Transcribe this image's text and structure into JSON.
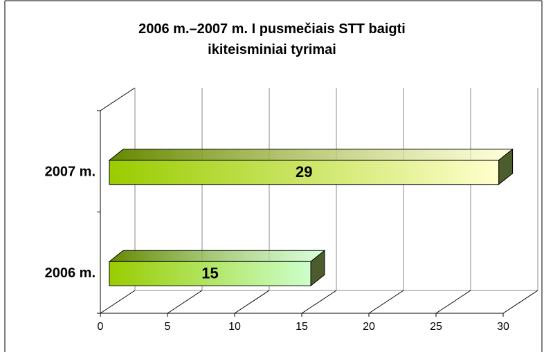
{
  "chart_data": {
    "type": "bar",
    "orientation": "horizontal",
    "title": "2006 m.–2007 m. I pusmečiais STT baigti ikiteisminiai tyrimai",
    "categories": [
      "2006 m.",
      "2007 m."
    ],
    "values": [
      15,
      29
    ],
    "colors": [
      "#ccffcc",
      "#ffffcc"
    ],
    "xlim": [
      0,
      30
    ],
    "xticks": [
      0,
      5,
      10,
      15,
      20,
      25,
      30
    ],
    "grid": true
  }
}
